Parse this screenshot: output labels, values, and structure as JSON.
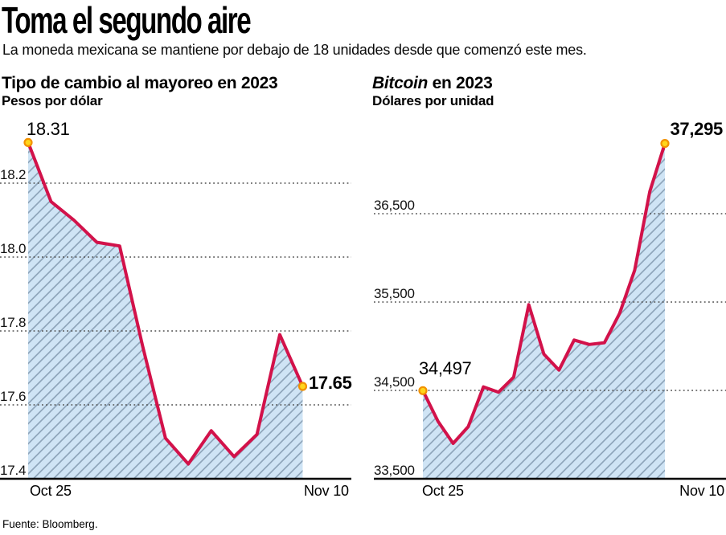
{
  "header": {
    "title": "Toma el segundo aire",
    "subtitle": "La moneda mexicana se mantiene por debajo de 18 unidades desde que comenzó este mes."
  },
  "footer": {
    "source": "Fuente: Bloomberg."
  },
  "colors": {
    "line": "#d2124a",
    "area_fill": "#cfe4f5",
    "hatch": "#8fa6bb",
    "grid": "#4f4f4f",
    "axis": "#000000",
    "marker_fill": "#ffd51c",
    "marker_ring": "#f29100"
  },
  "chart_data": [
    {
      "type": "area",
      "title": "Tipo de cambio al mayoreo en 2023",
      "subtitle": "Pesos por dólar",
      "x_axis": {
        "start_label": "Oct 25",
        "end_label": "Nov 10"
      },
      "ylim": [
        17.4,
        18.36
      ],
      "grid": "dotted-horizontal",
      "y_ticks": [
        {
          "value": 17.4,
          "label": "17.4"
        },
        {
          "value": 17.6,
          "label": "17.6"
        },
        {
          "value": 17.8,
          "label": "17.8"
        },
        {
          "value": 18.0,
          "label": "18.0"
        },
        {
          "value": 18.2,
          "label": "18.2"
        }
      ],
      "values": [
        18.31,
        18.15,
        18.1,
        18.04,
        18.03,
        17.76,
        17.51,
        17.44,
        17.53,
        17.46,
        17.52,
        17.79,
        17.65
      ],
      "start_point": {
        "value": 18.31,
        "label": "18.31"
      },
      "end_point": {
        "value": 17.65,
        "label": "17.65"
      }
    },
    {
      "type": "area",
      "title": "Bitcoin en 2023",
      "title_italic": "Bitcoin",
      "title_rest": " en 2023",
      "subtitle": "Dólares por unidad",
      "x_axis": {
        "start_label": "Oct 25",
        "end_label": "Nov 10"
      },
      "ylim": [
        33500,
        37400
      ],
      "grid": "dotted-horizontal",
      "y_ticks": [
        {
          "value": 33500,
          "label": "33,500"
        },
        {
          "value": 34500,
          "label": "34,500"
        },
        {
          "value": 35500,
          "label": "35,500"
        },
        {
          "value": 36500,
          "label": "36,500"
        }
      ],
      "values": [
        34497,
        34150,
        33900,
        34090,
        34540,
        34480,
        34650,
        35470,
        34910,
        34730,
        35070,
        35020,
        35040,
        35370,
        35860,
        36750,
        37295
      ],
      "start_point": {
        "value": 34497,
        "label": "34,497"
      },
      "end_point": {
        "value": 37295,
        "label": "37,295"
      }
    }
  ]
}
